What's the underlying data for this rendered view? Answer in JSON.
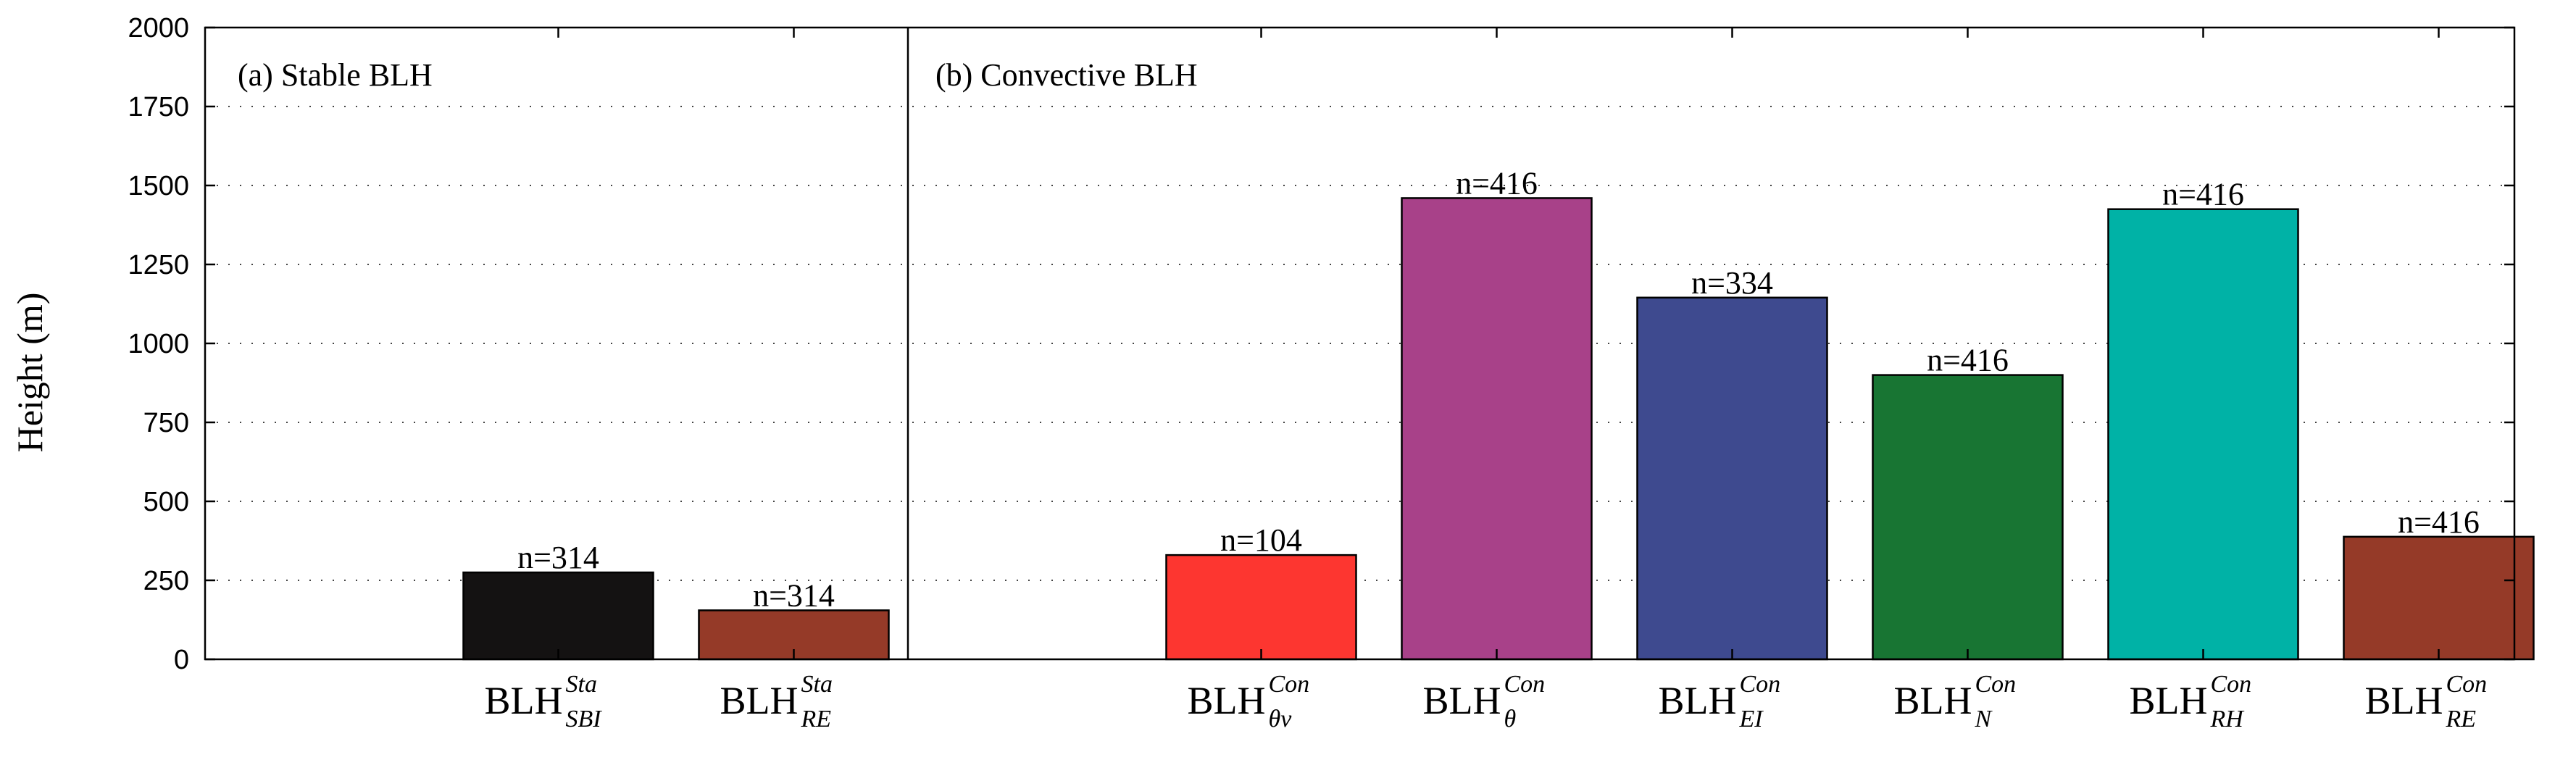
{
  "chart_data": {
    "type": "bar",
    "ylabel": "Height  (m)",
    "ylim": [
      0,
      2000
    ],
    "yticks": [
      "0",
      "250",
      "500",
      "750",
      "1000",
      "1250",
      "1500",
      "1750",
      "2000"
    ],
    "grid": "dotted horizontal",
    "panels": [
      {
        "title": "(a) Stable BLH",
        "bars": [
          {
            "main": "BLH",
            "sup": "Sta",
            "sub": "SBI",
            "value": 275,
            "n_label": "n=314",
            "color": "#141212"
          },
          {
            "main": "BLH",
            "sup": "Sta",
            "sub": "RE",
            "value": 155,
            "n_label": "n=314",
            "color": "#953a28"
          }
        ]
      },
      {
        "title": "(b) Convective BLH",
        "bars": [
          {
            "main": "BLH",
            "sup": "Con",
            "sub": "θv",
            "value": 330,
            "n_label": "n=104",
            "color": "#fd3630"
          },
          {
            "main": "BLH",
            "sup": "Con",
            "sub": "θ",
            "value": 1460,
            "n_label": "n=416",
            "color": "#a84189"
          },
          {
            "main": "BLH",
            "sup": "Con",
            "sub": "EI",
            "value": 1145,
            "n_label": "n=334",
            "color": "#3e4a8f"
          },
          {
            "main": "BLH",
            "sup": "Con",
            "sub": "N",
            "value": 900,
            "n_label": "n=416",
            "color": "#187533"
          },
          {
            "main": "BLH",
            "sup": "Con",
            "sub": "RH",
            "value": 1425,
            "n_label": "n=416",
            "color": "#00b2a6"
          },
          {
            "main": "BLH",
            "sup": "Con",
            "sub": "RE",
            "value": 388,
            "n_label": "n=416",
            "color": "#953a28"
          }
        ]
      }
    ]
  }
}
